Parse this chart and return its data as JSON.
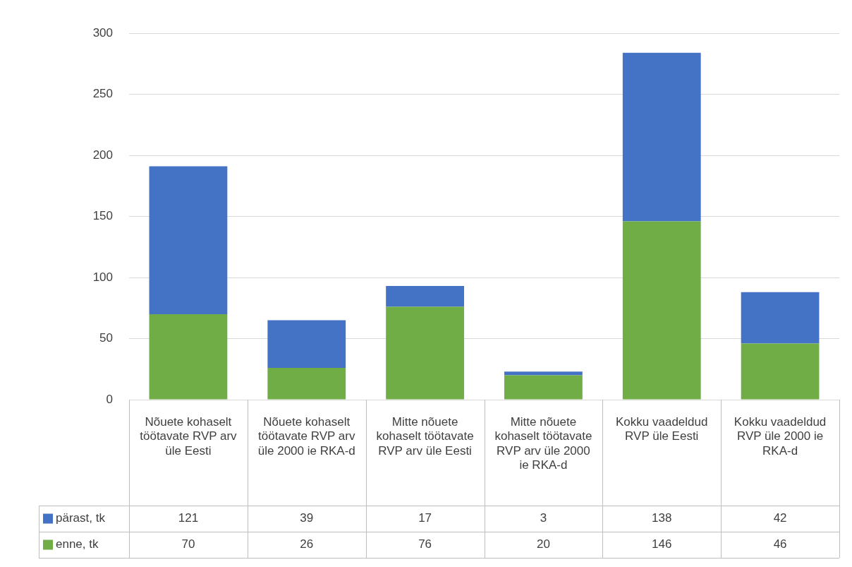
{
  "chart_data": {
    "type": "bar",
    "stacked": true,
    "categories": [
      "Nõuete kohaselt töötavate RVP arv üle Eesti",
      "Nõuete kohaselt töötavate RVP arv üle 2000 ie RKA-d",
      "Mitte nõuete kohaselt töötavate RVP arv üle Eesti",
      "Mitte nõuete kohaselt töötavate RVP arv üle 2000 ie RKA-d",
      "Kokku vaadeldud RVP üle Eesti",
      "Kokku vaadeldud RVP üle 2000 ie RKA-d"
    ],
    "series": [
      {
        "name": "enne, tk",
        "color": "#70ad47",
        "values": [
          70,
          26,
          76,
          20,
          146,
          46
        ]
      },
      {
        "name": "pärast, tk",
        "color": "#4472c4",
        "values": [
          121,
          39,
          17,
          3,
          138,
          42
        ]
      }
    ],
    "ylim": [
      0,
      300
    ],
    "yticks": [
      0,
      50,
      100,
      150,
      200,
      250,
      300
    ],
    "grid": "y",
    "legend": "bottom",
    "data_labels": true
  }
}
